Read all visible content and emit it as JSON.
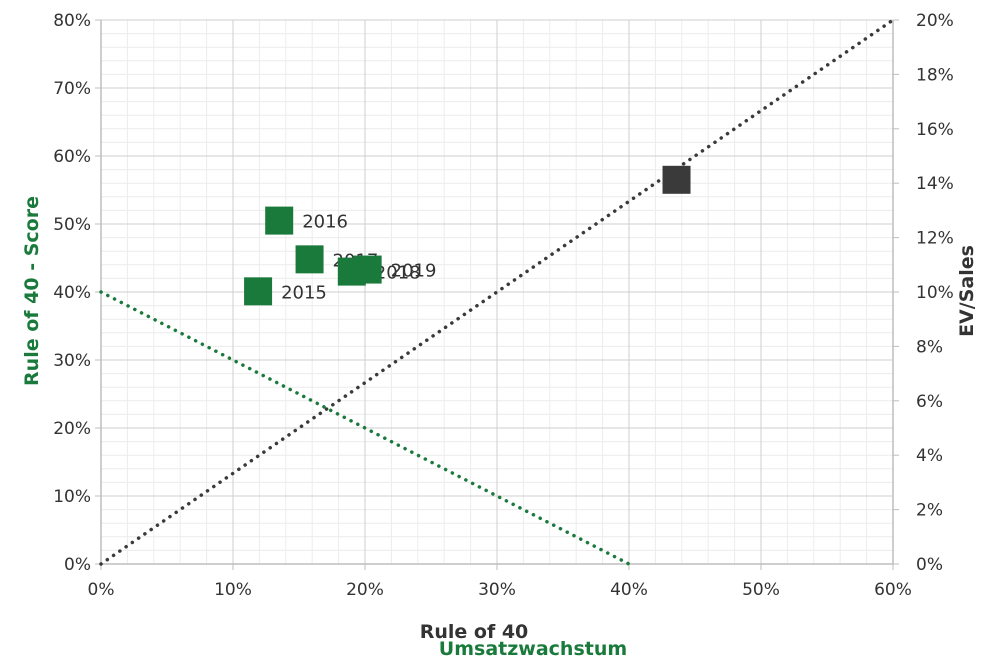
{
  "chart_data": {
    "type": "scatter",
    "x_axis": {
      "min": 0,
      "max": 60,
      "ticks": [
        0,
        10,
        20,
        30,
        40,
        50,
        60
      ],
      "tick_format": "%"
    },
    "y_left": {
      "label": "Rule of 40 - Score",
      "min": 0,
      "max": 80,
      "ticks": [
        0,
        10,
        20,
        30,
        40,
        50,
        60,
        70,
        80
      ],
      "tick_format": "%"
    },
    "y_right": {
      "label": "EV/Sales",
      "min": 0,
      "max": 20,
      "ticks": [
        0,
        2,
        4,
        6,
        8,
        10,
        12,
        14,
        16,
        18,
        20
      ],
      "tick_format": "%"
    },
    "xlabel_lines": [
      "Rule of 40",
      "Umsatzwachstum"
    ],
    "grid": true,
    "series": [
      {
        "axis": "left",
        "color": "#1a7a3c",
        "points": [
          {
            "x": 11.9,
            "y": 40.1,
            "label": "2015"
          },
          {
            "x": 13.5,
            "y": 50.5,
            "label": "2016"
          },
          {
            "x": 15.8,
            "y": 44.8,
            "label": "2017"
          },
          {
            "x": 19.0,
            "y": 43.0,
            "label": "2018"
          },
          {
            "x": 20.2,
            "y": 43.3,
            "label": "2019"
          }
        ]
      },
      {
        "axis": "left",
        "color": "#3a3a3a",
        "points": [
          {
            "x": 43.6,
            "y": 56.5
          }
        ]
      }
    ],
    "reference_lines": [
      {
        "from": [
          0,
          40
        ],
        "to": [
          40,
          0
        ],
        "color": "#1a7a3c",
        "style": "dotted"
      },
      {
        "from": [
          0,
          0
        ],
        "to": [
          60,
          80
        ],
        "color": "#3a3a3a",
        "style": "dotted"
      }
    ]
  }
}
